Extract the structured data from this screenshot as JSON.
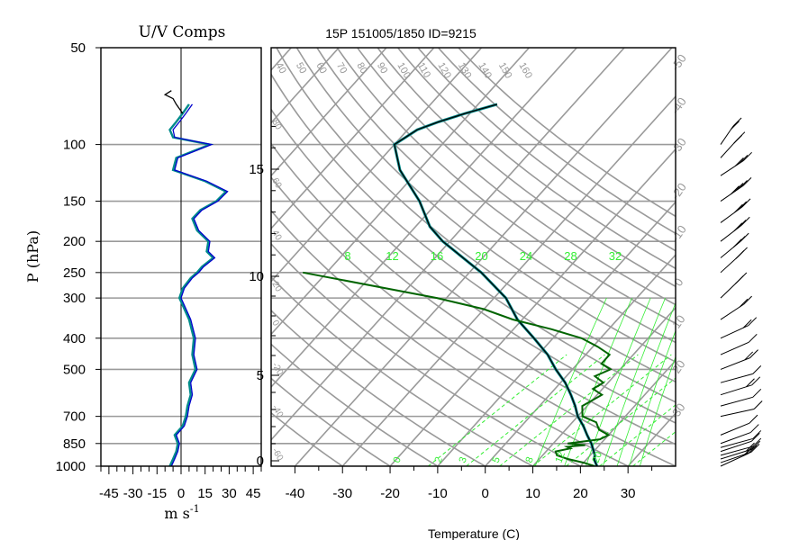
{
  "chart_data": [
    {
      "type": "line",
      "title": "U/V Comps",
      "xlabel": "m s",
      "xlabel_exponent": "-1",
      "ylabel": "P (hPa)",
      "xlim": [
        -50,
        50
      ],
      "x_ticks": [
        "-45",
        "-30",
        "-15",
        "0",
        "15",
        "30",
        "45"
      ],
      "y_ticks": [
        "50",
        "100",
        "150",
        "200",
        "250",
        "300",
        "400",
        "500",
        "700",
        "850",
        "1000"
      ],
      "y_tick_values": [
        50,
        100,
        150,
        200,
        250,
        300,
        400,
        500,
        700,
        850,
        1000
      ],
      "grid_pressures": [
        100,
        150,
        200,
        250,
        300,
        400,
        500,
        700,
        850,
        1000
      ],
      "colors": {
        "u": "#008b8b",
        "v": "#0000cd",
        "top": "#000000"
      },
      "series": [
        {
          "key": "u",
          "p": [
            1000,
            950,
            900,
            850,
            800,
            750,
            700,
            650,
            600,
            550,
            500,
            450,
            400,
            350,
            300,
            280,
            260,
            250,
            240,
            225,
            215,
            200,
            185,
            170,
            160,
            150,
            140,
            130,
            120,
            110,
            100,
            95,
            90,
            85,
            80,
            75
          ],
          "x": [
            -7,
            -5,
            -3,
            -2,
            -4,
            1,
            3,
            4,
            6,
            5,
            9,
            7,
            8,
            5,
            -1,
            1,
            6,
            10,
            13,
            20,
            16,
            17,
            10,
            7,
            12,
            22,
            28,
            15,
            -5,
            -3,
            18,
            -5,
            -7,
            -3,
            1,
            5
          ]
        },
        {
          "key": "v",
          "p": [
            1000,
            950,
            900,
            850,
            800,
            750,
            700,
            650,
            600,
            550,
            500,
            450,
            400,
            350,
            300,
            280,
            260,
            250,
            240,
            225,
            215,
            200,
            185,
            170,
            160,
            150,
            140,
            130,
            120,
            110,
            100,
            95,
            90,
            85,
            80,
            75
          ],
          "x": [
            -6,
            -4,
            -2,
            -1,
            -3,
            2,
            4,
            5,
            7,
            6,
            10,
            8,
            9,
            6,
            0,
            2,
            7,
            11,
            14,
            21,
            17,
            18,
            11,
            8,
            13,
            23,
            29,
            16,
            -4,
            -2,
            19,
            -4,
            -5,
            -1,
            3,
            7
          ]
        },
        {
          "key": "top",
          "p": [
            80,
            75,
            72,
            70,
            68
          ],
          "x": [
            1,
            -3,
            -5,
            -10,
            -6
          ]
        }
      ]
    },
    {
      "type": "line",
      "title": "15P 151005/1850 ID=9215",
      "xlabel": "Temperature (C)",
      "ylabel": "",
      "xlim": [
        -45,
        40
      ],
      "x_ticks": [
        "-40",
        "-30",
        "-20",
        "-10",
        "0",
        "10",
        "20",
        "30"
      ],
      "height_ticks": [
        "0",
        "5",
        "10",
        "15"
      ],
      "mixing_ratio_labels": [
        "8",
        "12",
        "16",
        "20",
        "24",
        "28",
        "32"
      ],
      "theta_e_labels": [
        "40",
        "50",
        "60",
        "70",
        "80",
        "90",
        "100",
        "110",
        "120",
        "130",
        "140",
        "150",
        "160"
      ],
      "theta_e_values": [
        40,
        50,
        60,
        70,
        80,
        90,
        100,
        110,
        120,
        130,
        140,
        150,
        160
      ],
      "left_isotherm_labels": [
        "80",
        "60",
        "40",
        "20",
        "0",
        "-20",
        "-40",
        "-60"
      ],
      "right_isotherm_labels": [
        "-50",
        "-40",
        "-30",
        "-20",
        "-10",
        "0",
        "10",
        "20",
        "30"
      ],
      "bottom_dashed_labels": [
        "0",
        "2",
        "3",
        "5",
        "8",
        "12",
        "20"
      ],
      "colors": {
        "temperature": "#000000",
        "dewpoint": "#006400",
        "overlay": "#008b8b",
        "mixing_ratio": "#33ee33",
        "grid": "#9a9a9a"
      },
      "series": [
        {
          "key": "temperature",
          "p": [
            1000,
            950,
            925,
            900,
            850,
            800,
            750,
            700,
            650,
            600,
            550,
            500,
            450,
            400,
            350,
            300,
            250,
            200,
            180,
            150,
            120,
            100,
            95,
            90,
            85,
            80,
            75
          ],
          "t": [
            23.5,
            21.5,
            21,
            20,
            18,
            15.5,
            13,
            10,
            7.5,
            4.5,
            1,
            -3.5,
            -8,
            -14,
            -21,
            -27.5,
            -37.5,
            -51.5,
            -57,
            -64,
            -74,
            -80,
            -79,
            -78,
            -75,
            -71,
            -66
          ]
        },
        {
          "key": "dewpoint",
          "p": [
            1000,
            975,
            950,
            925,
            900,
            880,
            870,
            860,
            850,
            825,
            800,
            770,
            750,
            730,
            700,
            650,
            600,
            575,
            550,
            525,
            500,
            480,
            450,
            425,
            400,
            375,
            350,
            325,
            300,
            250
          ],
          "t": [
            23,
            20,
            16,
            13,
            12,
            14.5,
            13.5,
            17,
            13,
            19,
            20,
            17,
            16,
            15,
            11,
            9,
            11,
            8,
            9,
            6,
            8,
            5,
            5,
            1,
            -4,
            -12,
            -22,
            -30,
            -42,
            -75
          ]
        }
      ],
      "wind_barbs": [
        {
          "p": 1000,
          "u": -6,
          "v": -5
        },
        {
          "p": 975,
          "u": -8,
          "v": -5
        },
        {
          "p": 950,
          "u": -7,
          "v": -4
        },
        {
          "p": 925,
          "u": -6,
          "v": -3
        },
        {
          "p": 900,
          "u": -5,
          "v": -3
        },
        {
          "p": 875,
          "u": -4,
          "v": -2
        },
        {
          "p": 850,
          "u": -3,
          "v": -2
        },
        {
          "p": 800,
          "u": -4,
          "v": -3
        },
        {
          "p": 700,
          "u": -5,
          "v": -2
        },
        {
          "p": 650,
          "u": -6,
          "v": -3
        },
        {
          "p": 600,
          "u": -7,
          "v": -4
        },
        {
          "p": 550,
          "u": -6,
          "v": -3
        },
        {
          "p": 500,
          "u": -7,
          "v": -5
        },
        {
          "p": 450,
          "u": -5,
          "v": -4
        },
        {
          "p": 400,
          "u": -6,
          "v": -5
        },
        {
          "p": 350,
          "u": -5,
          "v": -6
        },
        {
          "p": 300,
          "u": -4,
          "v": -7
        },
        {
          "p": 250,
          "u": -6,
          "v": -10
        },
        {
          "p": 225,
          "u": -8,
          "v": -12
        },
        {
          "p": 200,
          "u": -10,
          "v": -14
        },
        {
          "p": 175,
          "u": -9,
          "v": -12
        },
        {
          "p": 150,
          "u": -12,
          "v": -15
        },
        {
          "p": 125,
          "u": -10,
          "v": -12
        },
        {
          "p": 110,
          "u": -5,
          "v": -10
        },
        {
          "p": 100,
          "u": -3,
          "v": -8
        }
      ]
    }
  ]
}
